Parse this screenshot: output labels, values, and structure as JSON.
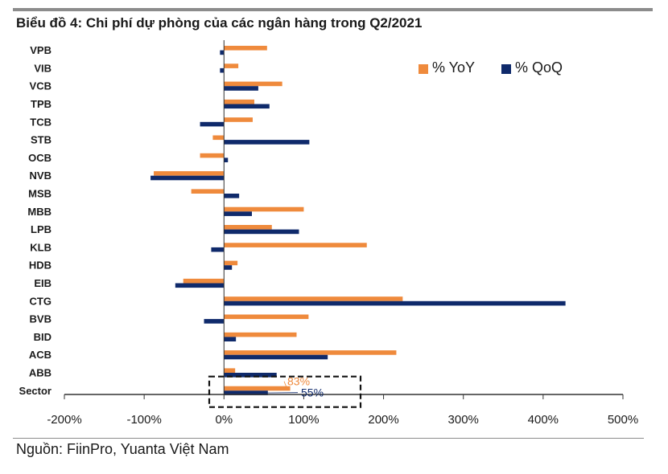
{
  "title": "Biểu đồ 4: Chi phí dự phòng của các ngân hàng trong Q2/2021",
  "source": "Nguồn: FiinPro, Yuanta Việt Nam",
  "colors": {
    "yoy": "#ef8a3c",
    "qoq": "#0f2a6b",
    "axis": "#333333"
  },
  "chart_data": {
    "type": "bar",
    "orientation": "horizontal",
    "categories": [
      "VPB",
      "VIB",
      "VCB",
      "TPB",
      "TCB",
      "STB",
      "OCB",
      "NVB",
      "MSB",
      "MBB",
      "LPB",
      "KLB",
      "HDB",
      "EIB",
      "CTG",
      "BVB",
      "BID",
      "ACB",
      "ABB",
      "Sector"
    ],
    "series": [
      {
        "name": "% YoY",
        "color": "#ef8a3c",
        "values": [
          54,
          18,
          73,
          38,
          36,
          -14,
          -30,
          -88,
          -41,
          100,
          60,
          179,
          17,
          -51,
          224,
          106,
          91,
          216,
          14,
          83
        ]
      },
      {
        "name": "% QoQ",
        "color": "#0f2a6b",
        "values": [
          -5,
          -5,
          43,
          57,
          -30,
          107,
          5,
          -92,
          19,
          35,
          94,
          -16,
          10,
          -61,
          428,
          -25,
          15,
          130,
          66,
          55
        ]
      }
    ],
    "x_ticks": [
      "-200%",
      "-100%",
      "0%",
      "100%",
      "200%",
      "300%",
      "400%",
      "500%"
    ],
    "xlim": [
      -200,
      500
    ],
    "grid": false,
    "legend": "top-right",
    "annotations": [
      {
        "label": "83%",
        "category": "Sector",
        "series": "% YoY"
      },
      {
        "label": "55%",
        "category": "Sector",
        "series": "% QoQ"
      }
    ]
  }
}
